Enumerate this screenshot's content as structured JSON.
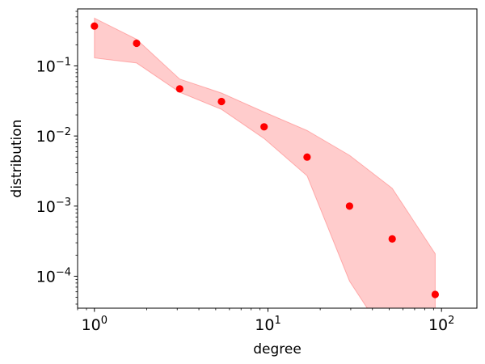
{
  "chart_data": {
    "type": "scatter",
    "xlabel": "degree",
    "ylabel": "distribution",
    "x_scale": "log",
    "y_scale": "log",
    "xlim": [
      0.8,
      160
    ],
    "ylim": [
      3.5e-05,
      0.65
    ],
    "grid": false,
    "x_ticks": [
      {
        "value": 1,
        "base": "10",
        "exp": "0"
      },
      {
        "value": 10,
        "base": "10",
        "exp": "1"
      },
      {
        "value": 100,
        "base": "10",
        "exp": "2"
      }
    ],
    "y_ticks": [
      {
        "value": 0.0001,
        "base": "10",
        "exp": "−4"
      },
      {
        "value": 0.001,
        "base": "10",
        "exp": "−3"
      },
      {
        "value": 0.01,
        "base": "10",
        "exp": "−2"
      },
      {
        "value": 0.1,
        "base": "10",
        "exp": "−1"
      }
    ],
    "series": [
      {
        "type": "scatter",
        "color": "#ff0000",
        "points": [
          {
            "x": 1.0,
            "y": 0.37
          },
          {
            "x": 1.75,
            "y": 0.21
          },
          {
            "x": 3.1,
            "y": 0.047
          },
          {
            "x": 5.4,
            "y": 0.031
          },
          {
            "x": 9.5,
            "y": 0.0135
          },
          {
            "x": 16.8,
            "y": 0.005
          },
          {
            "x": 29.5,
            "y": 0.001
          },
          {
            "x": 52,
            "y": 0.00034
          },
          {
            "x": 92,
            "y": 5.5e-05
          }
        ]
      },
      {
        "type": "band",
        "color": "#ff0000",
        "opacity": 0.2,
        "x": [
          1.0,
          1.75,
          3.1,
          5.4,
          9.5,
          16.8,
          29.5,
          52,
          92
        ],
        "upper": [
          0.48,
          0.24,
          0.065,
          0.041,
          0.022,
          0.012,
          0.0053,
          0.0018,
          0.00021
        ],
        "lower": [
          0.13,
          0.11,
          0.042,
          0.024,
          0.0092,
          0.0027,
          8.5e-05,
          1e-05,
          1e-05
        ]
      }
    ]
  }
}
